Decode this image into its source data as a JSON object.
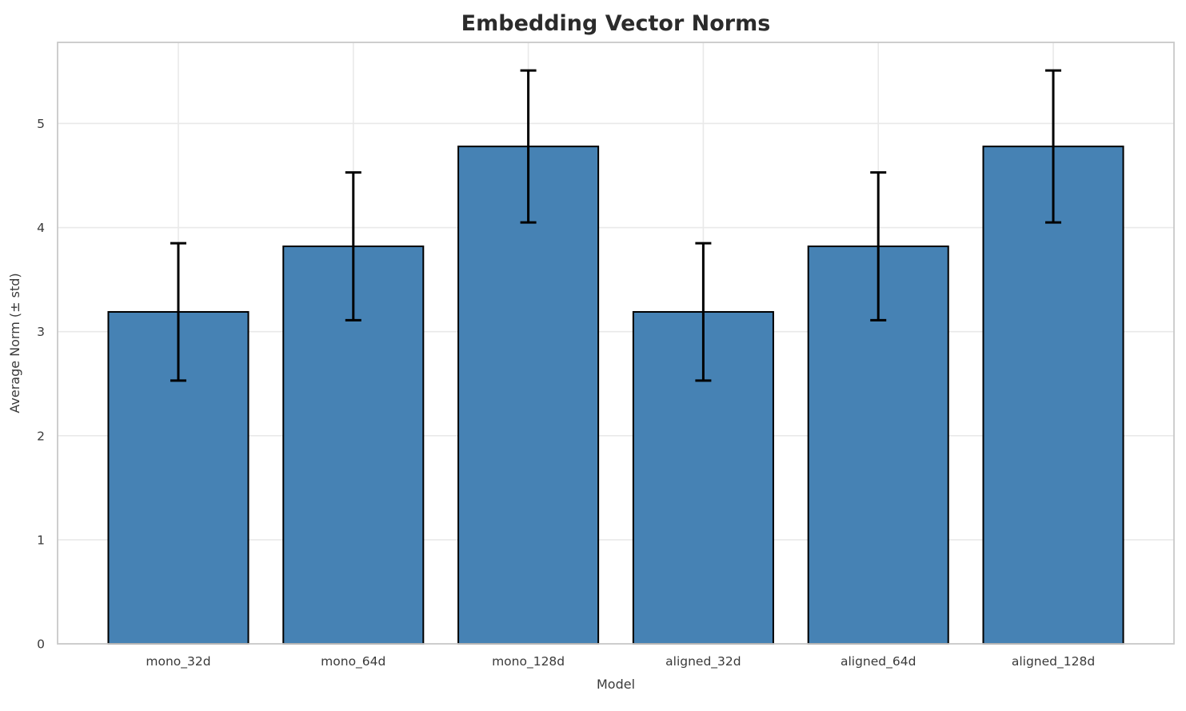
{
  "chart_data": {
    "type": "bar",
    "title": "Embedding Vector Norms",
    "xlabel": "Model",
    "ylabel": "Average Norm (± std)",
    "categories": [
      "mono_32d",
      "mono_64d",
      "mono_128d",
      "aligned_32d",
      "aligned_64d",
      "aligned_128d"
    ],
    "values": [
      3.19,
      3.82,
      4.78,
      3.19,
      3.82,
      4.78
    ],
    "errors": [
      0.66,
      0.71,
      0.73,
      0.66,
      0.71,
      0.73
    ],
    "yticks": [
      0,
      1,
      2,
      3,
      4,
      5
    ],
    "ylim": [
      0,
      5.78
    ],
    "grid": "both",
    "legend": "none",
    "bar_color": "#4682B4",
    "bar_edge_color": "#000000",
    "error_color": "#000000",
    "grid_color": "#e9e9e9",
    "spine_color": "#c9c9c9",
    "tick_text_color": "#3a3a3a",
    "title_color": "#2b2b2b"
  }
}
